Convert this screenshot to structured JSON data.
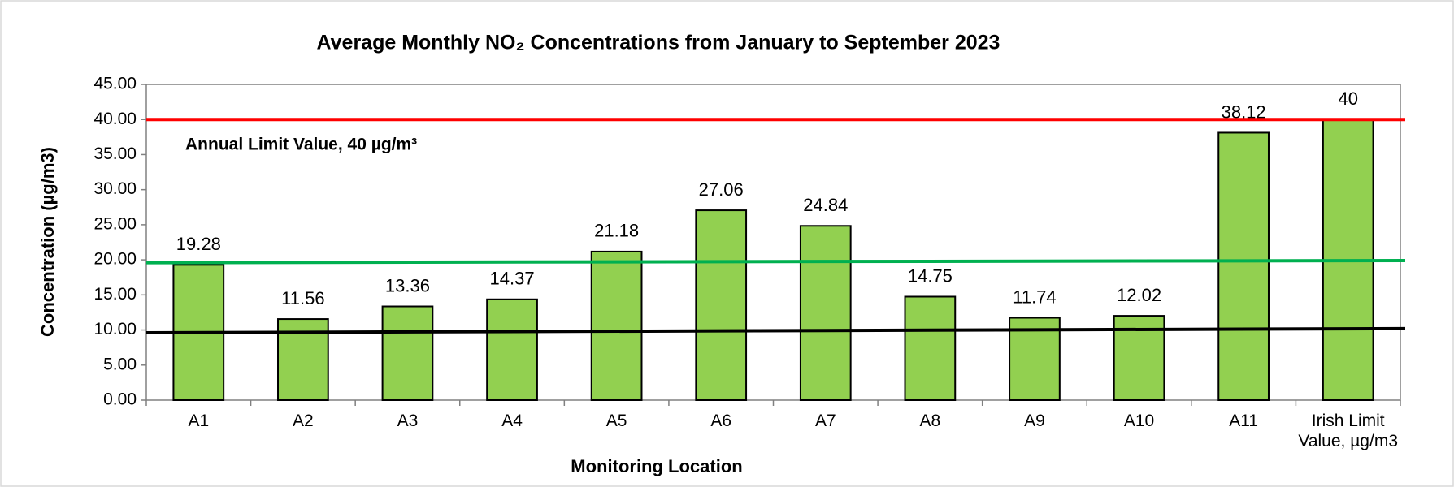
{
  "chart_data": {
    "type": "bar",
    "title": "Average Monthly NO₂ Concentrations from January to September 2023",
    "x_label": "Monitoring Location",
    "y_label": "Concentration (µg/m3)",
    "categories": [
      "A1",
      "A2",
      "A3",
      "A4",
      "A5",
      "A6",
      "A7",
      "A8",
      "A9",
      "A10",
      "A11",
      "Irish Limit Value, µg/m3"
    ],
    "values": [
      19.28,
      11.56,
      13.36,
      14.37,
      21.18,
      27.06,
      24.84,
      14.75,
      11.74,
      12.02,
      38.12,
      40
    ],
    "color": "#92d050",
    "ylim": [
      0,
      45
    ],
    "yticks": [
      {
        "value": 0,
        "label": "0.00"
      },
      {
        "value": 5,
        "label": "5.00"
      },
      {
        "value": 10,
        "label": "10.00"
      },
      {
        "value": 15,
        "label": "15.00"
      },
      {
        "value": 20,
        "label": "20.00"
      },
      {
        "value": 25,
        "label": "25.00"
      },
      {
        "value": 30,
        "label": "30.00"
      },
      {
        "value": 35,
        "label": "35.00"
      },
      {
        "value": 40,
        "label": "40.00"
      },
      {
        "value": 45,
        "label": "45.00"
      }
    ],
    "reference_lines": [
      {
        "color": "#ff0000",
        "values": [
          40,
          40
        ]
      },
      {
        "color": "#00b050",
        "values": [
          19.6,
          19.9
        ]
      },
      {
        "color": "#000000",
        "values": [
          9.6,
          10.2
        ]
      }
    ],
    "annotations": [
      "Annual Limit Value, 40 µg/m³"
    ]
  }
}
